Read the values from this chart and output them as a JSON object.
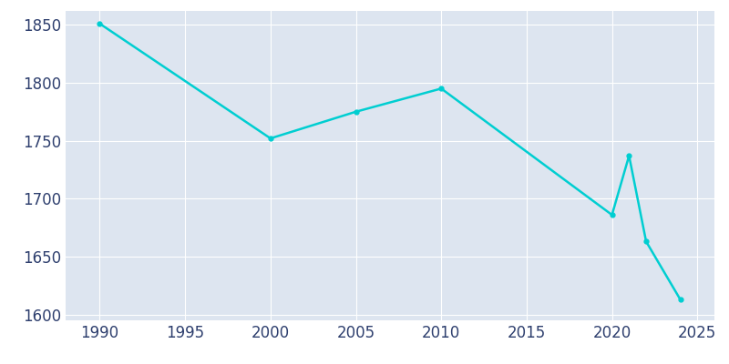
{
  "years": [
    1990,
    2000,
    2005,
    2010,
    2020,
    2021,
    2022,
    2024
  ],
  "population": [
    1851,
    1752,
    1775,
    1795,
    1686,
    1737,
    1663,
    1613
  ],
  "line_color": "#00CED1",
  "marker": "o",
  "marker_size": 3.5,
  "background_color": "#e3eaf4",
  "plot_bg_color": "#dde5f0",
  "grid_color": "#ffffff",
  "xlim": [
    1988,
    2026
  ],
  "ylim": [
    1595,
    1862
  ],
  "xticks": [
    1990,
    1995,
    2000,
    2005,
    2010,
    2015,
    2020,
    2025
  ],
  "yticks": [
    1600,
    1650,
    1700,
    1750,
    1800,
    1850
  ],
  "tick_color": "#2e3f6e",
  "figsize": [
    8.0,
    4.0
  ],
  "dpi": 100
}
